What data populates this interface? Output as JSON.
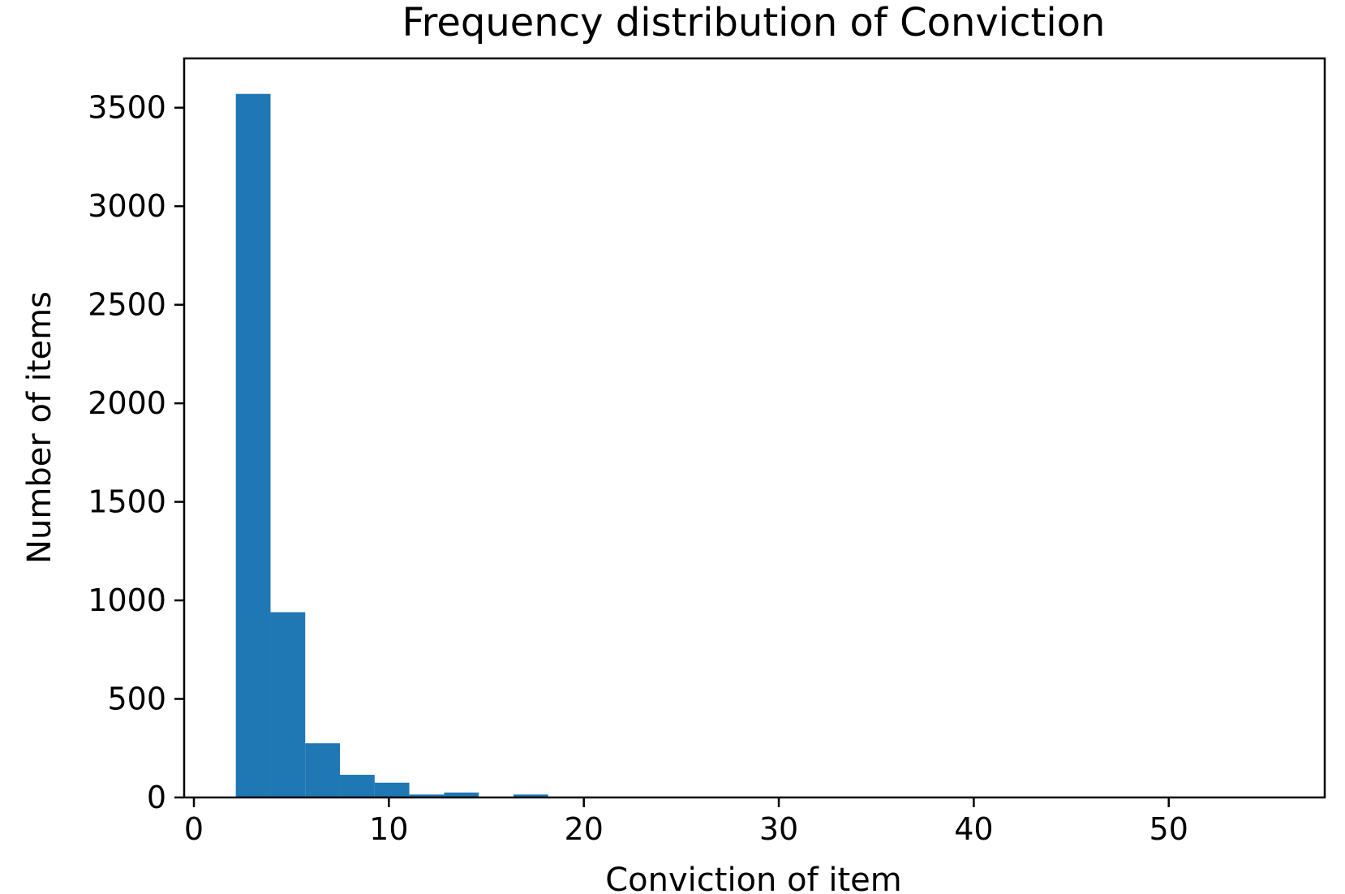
{
  "chart_data": {
    "type": "bar",
    "title": "Frequency distribution of Conviction",
    "xlabel": "Conviction of item",
    "ylabel": "Number of items",
    "xlim": [
      -0.5,
      58
    ],
    "ylim": [
      0,
      3750
    ],
    "x_ticks": [
      0,
      10,
      20,
      30,
      40,
      50
    ],
    "y_ticks": [
      0,
      500,
      1000,
      1500,
      2000,
      2500,
      3000,
      3500
    ],
    "bar_color": "#1f77b4",
    "grid": false,
    "bins": [
      {
        "start": 2.15,
        "end": 3.93,
        "count": 3570
      },
      {
        "start": 3.93,
        "end": 5.71,
        "count": 940
      },
      {
        "start": 5.71,
        "end": 7.49,
        "count": 275
      },
      {
        "start": 7.49,
        "end": 9.27,
        "count": 115
      },
      {
        "start": 9.27,
        "end": 11.05,
        "count": 75
      },
      {
        "start": 11.05,
        "end": 12.83,
        "count": 15
      },
      {
        "start": 12.83,
        "end": 14.61,
        "count": 25
      },
      {
        "start": 14.61,
        "end": 16.39,
        "count": 3
      },
      {
        "start": 16.39,
        "end": 18.17,
        "count": 15
      },
      {
        "start": 18.17,
        "end": 19.95,
        "count": 2
      },
      {
        "start": 19.95,
        "end": 21.73,
        "count": 1
      },
      {
        "start": 21.73,
        "end": 23.51,
        "count": 1
      },
      {
        "start": 23.51,
        "end": 25.29,
        "count": 1
      },
      {
        "start": 25.29,
        "end": 27.07,
        "count": 1
      },
      {
        "start": 27.07,
        "end": 28.85,
        "count": 1
      },
      {
        "start": 28.85,
        "end": 30.63,
        "count": 1
      },
      {
        "start": 30.63,
        "end": 32.41,
        "count": 0
      },
      {
        "start": 32.41,
        "end": 34.19,
        "count": 1
      },
      {
        "start": 34.19,
        "end": 35.97,
        "count": 0
      },
      {
        "start": 35.97,
        "end": 37.75,
        "count": 0
      },
      {
        "start": 37.75,
        "end": 39.53,
        "count": 1
      },
      {
        "start": 39.53,
        "end": 41.31,
        "count": 0
      },
      {
        "start": 41.31,
        "end": 43.09,
        "count": 0
      },
      {
        "start": 43.09,
        "end": 44.87,
        "count": 0
      },
      {
        "start": 44.87,
        "end": 46.65,
        "count": 0
      },
      {
        "start": 46.65,
        "end": 48.43,
        "count": 0
      },
      {
        "start": 48.43,
        "end": 50.21,
        "count": 0
      },
      {
        "start": 50.21,
        "end": 51.99,
        "count": 1
      },
      {
        "start": 51.99,
        "end": 53.77,
        "count": 0
      },
      {
        "start": 53.77,
        "end": 55.55,
        "count": 1
      }
    ]
  }
}
